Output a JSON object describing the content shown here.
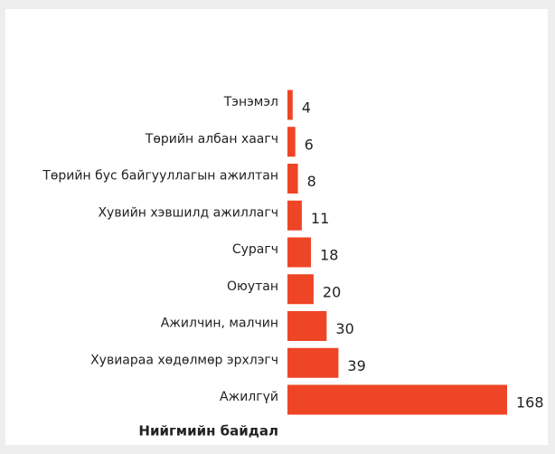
{
  "chart_data": {
    "type": "bar",
    "orientation": "horizontal",
    "y_label": "Нийгмийн байдал",
    "categories": [
      "Тэнэмэл",
      "Төрийн албан хаагч",
      "Төрийн бус байгууллагын ажилтан",
      "Хувийн хэвшилд ажиллагч",
      "Сурагч",
      "Оюутан",
      "Ажилчин, малчин",
      "Хувиараа хөдөлмөр эрхлэгч",
      "Ажилгүй"
    ],
    "values": [
      4,
      6,
      8,
      11,
      18,
      20,
      30,
      39,
      168
    ],
    "color": "#ee4526"
  }
}
